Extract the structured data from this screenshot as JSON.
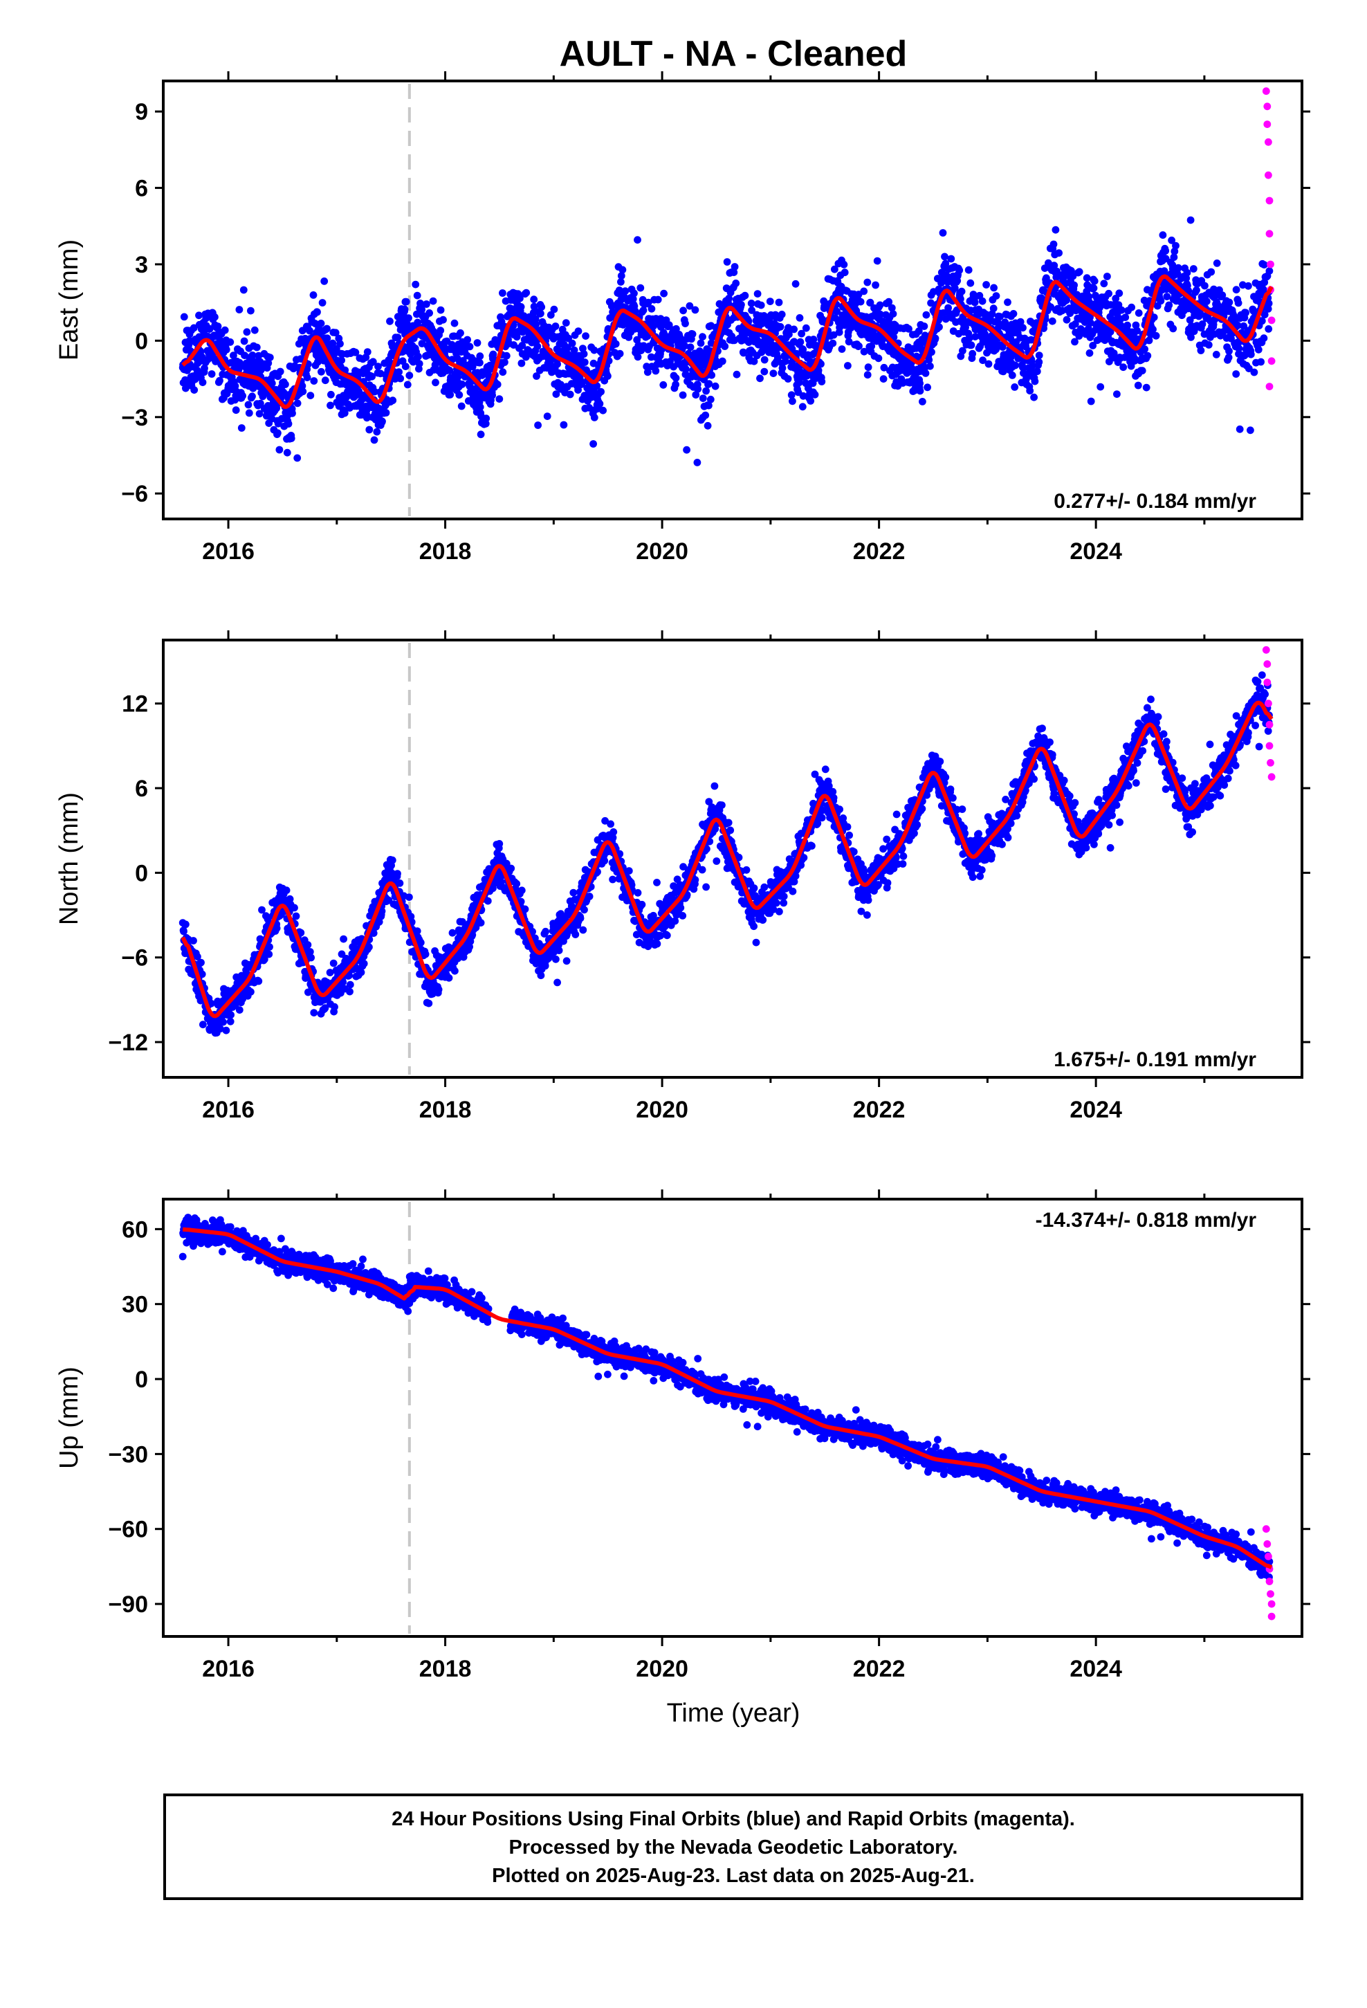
{
  "title": "AULT  - NA - Cleaned",
  "colors": {
    "final_orbits": "#0000ff",
    "rapid_orbits": "#ff00ff",
    "model_fit": "#ff0000",
    "equipment_change": "#c8c8c8",
    "frame": "#000000"
  },
  "x_axis": {
    "label": "Time (year)",
    "range": [
      2015.4,
      2025.9
    ],
    "ticks": [
      "2016",
      "2018",
      "2020",
      "2022",
      "2024"
    ]
  },
  "footer": {
    "line1": "24 Hour Positions Using Final Orbits (blue) and Rapid Orbits (magenta).",
    "line2": "Processed by the Nevada Geodetic Laboratory.",
    "line3": "Plotted on 2025-Aug-23. Last data on 2025-Aug-21."
  },
  "chart_data": [
    {
      "type": "scatter",
      "component": "east",
      "ylabel": "East (mm)",
      "ylim": [
        -7,
        10.2
      ],
      "yticks": [
        "9",
        "6",
        "3",
        "0",
        "−3",
        "−6"
      ],
      "rate": "0.277+/- 0.184 mm/yr",
      "rate_position": "bottom-right",
      "data_start": 2015.58,
      "data_end": 2025.62,
      "equipment_change_year": 2017.67,
      "model": {
        "x": [
          2015.58,
          2015.8,
          2016.0,
          2016.3,
          2016.55,
          2016.8,
          2017.0,
          2017.2,
          2017.4,
          2017.6,
          2017.8,
          2018.0,
          2018.2,
          2018.4,
          2018.6,
          2018.8,
          2019.0,
          2019.2,
          2019.4,
          2019.6,
          2019.8,
          2020.0,
          2020.2,
          2020.4,
          2020.6,
          2020.8,
          2021.0,
          2021.2,
          2021.4,
          2021.6,
          2021.8,
          2022.0,
          2022.2,
          2022.4,
          2022.6,
          2022.8,
          2023.0,
          2023.2,
          2023.4,
          2023.6,
          2023.8,
          2024.0,
          2024.2,
          2024.4,
          2024.6,
          2024.8,
          2025.0,
          2025.2,
          2025.4,
          2025.62
        ],
        "y": [
          -1.1,
          0.2,
          -1.2,
          -1.5,
          -2.8,
          0.4,
          -1.2,
          -1.6,
          -2.6,
          0.0,
          0.6,
          -0.8,
          -1.2,
          -2.1,
          1.0,
          0.5,
          -0.6,
          -1.0,
          -1.8,
          1.3,
          0.8,
          -0.2,
          -0.5,
          -1.6,
          1.5,
          0.5,
          0.3,
          -0.6,
          -1.3,
          1.9,
          0.8,
          0.5,
          -0.4,
          -1.0,
          2.2,
          1.0,
          0.6,
          -0.2,
          -0.8,
          2.5,
          1.6,
          1.0,
          0.4,
          -0.5,
          2.7,
          1.9,
          1.2,
          0.8,
          -0.2,
          2.4
        ]
      },
      "rapid_points": {
        "x": [
          2025.57,
          2025.58,
          2025.58,
          2025.59,
          2025.59,
          2025.6,
          2025.6,
          2025.61,
          2025.61,
          2025.62,
          2025.62,
          2025.6
        ],
        "y": [
          9.8,
          9.2,
          8.5,
          7.8,
          6.5,
          5.5,
          4.2,
          3.0,
          2.0,
          0.8,
          -0.8,
          -1.8
        ]
      }
    },
    {
      "type": "scatter",
      "component": "north",
      "ylabel": "North (mm)",
      "ylim": [
        -14.5,
        16.5
      ],
      "yticks": [
        "12",
        "6",
        "0",
        "−6",
        "−12"
      ],
      "rate": "1.675+/- 0.191 mm/yr",
      "rate_position": "bottom-right",
      "data_start": 2015.58,
      "data_end": 2025.62,
      "equipment_change_year": 2017.67,
      "model": {
        "x": [
          2015.58,
          2015.85,
          2016.2,
          2016.5,
          2016.85,
          2017.2,
          2017.5,
          2017.85,
          2018.2,
          2018.5,
          2018.85,
          2019.2,
          2019.5,
          2019.85,
          2020.2,
          2020.5,
          2020.85,
          2021.2,
          2021.5,
          2021.85,
          2022.2,
          2022.5,
          2022.85,
          2023.2,
          2023.5,
          2023.85,
          2024.2,
          2024.5,
          2024.85,
          2025.2,
          2025.5,
          2025.62
        ],
        "y": [
          -4.0,
          -10.5,
          -7.5,
          -1.8,
          -9.0,
          -6.0,
          -0.2,
          -7.8,
          -4.5,
          1.0,
          -6.0,
          -3.0,
          2.7,
          -4.5,
          -1.5,
          4.3,
          -2.8,
          0.0,
          6.0,
          -1.2,
          2.0,
          7.6,
          0.8,
          4.0,
          9.3,
          2.2,
          5.8,
          11.0,
          4.2,
          7.6,
          12.5,
          10.5
        ]
      },
      "rapid_points": {
        "x": [
          2025.57,
          2025.58,
          2025.58,
          2025.59,
          2025.6,
          2025.6,
          2025.61,
          2025.62
        ],
        "y": [
          15.8,
          14.8,
          13.5,
          12.0,
          10.5,
          9.0,
          7.8,
          6.8
        ]
      }
    },
    {
      "type": "scatter",
      "component": "up",
      "ylabel": "Up (mm)",
      "ylim": [
        -103,
        72
      ],
      "yticks": [
        "60",
        "30",
        "0",
        "−30",
        "−60",
        "−90"
      ],
      "rate": "-14.374+/- 0.818 mm/yr",
      "rate_position": "top-right",
      "data_start": 2015.58,
      "data_end": 2025.62,
      "equipment_change_year": 2017.67,
      "model": {
        "x": [
          2015.58,
          2016.0,
          2016.5,
          2017.0,
          2017.4,
          2017.67,
          2017.67,
          2018.0,
          2018.5,
          2019.0,
          2019.5,
          2020.0,
          2020.5,
          2021.0,
          2021.5,
          2022.0,
          2022.5,
          2023.0,
          2023.5,
          2024.0,
          2024.5,
          2025.0,
          2025.3,
          2025.62
        ],
        "y": [
          60,
          58,
          47,
          43,
          38,
          31,
          37,
          36,
          24,
          20,
          10,
          6,
          -5,
          -9,
          -19,
          -23,
          -32,
          -35,
          -45,
          -49,
          -53,
          -63,
          -67,
          -76
        ]
      },
      "rapid_points": {
        "x": [
          2025.57,
          2025.58,
          2025.59,
          2025.6,
          2025.6,
          2025.61,
          2025.62,
          2025.62
        ],
        "y": [
          -60,
          -66,
          -71,
          -76,
          -81,
          -86,
          -90,
          -95
        ]
      }
    }
  ]
}
